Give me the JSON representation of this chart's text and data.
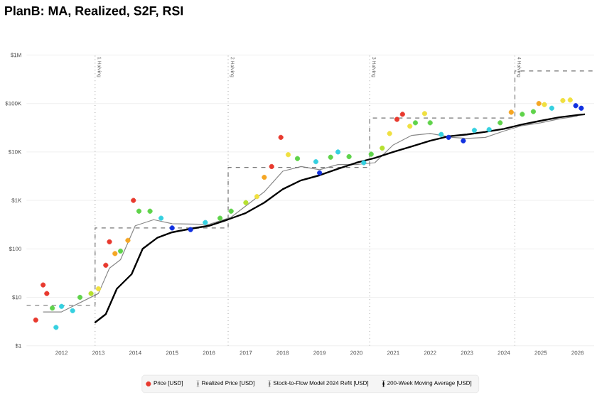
{
  "chart_data": {
    "type": "line",
    "title": "PlanB: MA, Realized, S2F, RSI",
    "log": "y",
    "grid": "y",
    "legend": "bottom",
    "xlim": [
      2011.05,
      2026.45
    ],
    "xticks": [
      2012,
      2013,
      2014,
      2015,
      2016,
      2017,
      2018,
      2019,
      2020,
      2021,
      2022,
      2023,
      2024,
      2025,
      2026
    ],
    "ylim": [
      1,
      1000000
    ],
    "yticks": [
      {
        "value": 1,
        "label": "$1"
      },
      {
        "value": 10,
        "label": "$10"
      },
      {
        "value": 100,
        "label": "$100"
      },
      {
        "value": 1000,
        "label": "$1K"
      },
      {
        "value": 10000,
        "label": "$10K"
      },
      {
        "value": 100000,
        "label": "$100K"
      },
      {
        "value": 1000000,
        "label": "$1M"
      }
    ],
    "ref_lines": [
      {
        "axis": "x",
        "value": 2012.91,
        "label": "1 Halving",
        "color": "#999999",
        "line_style": "dotted"
      },
      {
        "axis": "x",
        "value": 2016.52,
        "label": "2 Halving",
        "color": "#999999",
        "line_style": "dotted"
      },
      {
        "axis": "x",
        "value": 2020.36,
        "label": "3 Halving",
        "color": "#999999",
        "line_style": "dotted"
      },
      {
        "axis": "x",
        "value": 2024.3,
        "label": "4 Halving",
        "color": "#999999",
        "line_style": "dotted"
      }
    ],
    "series": [
      {
        "name": "Price [USD]",
        "type": "scatter",
        "x": [
          2011.3,
          2011.5,
          2011.6,
          2011.75,
          2011.85,
          2012.0,
          2012.3,
          2012.5,
          2012.8,
          2013.0,
          2013.2,
          2013.3,
          2013.45,
          2013.6,
          2013.8,
          2013.95,
          2014.1,
          2014.4,
          2014.7,
          2015.0,
          2015.5,
          2015.9,
          2016.3,
          2016.6,
          2017.0,
          2017.3,
          2017.5,
          2017.7,
          2017.95,
          2018.15,
          2018.4,
          2018.9,
          2019.0,
          2019.3,
          2019.5,
          2019.8,
          2020.2,
          2020.4,
          2020.7,
          2020.9,
          2021.1,
          2021.25,
          2021.45,
          2021.6,
          2021.85,
          2022.0,
          2022.3,
          2022.5,
          2022.9,
          2023.2,
          2023.6,
          2023.9,
          2024.2,
          2024.5,
          2024.8,
          2024.95,
          2025.1,
          2025.3,
          2025.6,
          2025.8,
          2025.95,
          2026.1
        ],
        "values": [
          3.4,
          18,
          12,
          6,
          2.4,
          6.5,
          5.3,
          10,
          12,
          15,
          46,
          140,
          80,
          90,
          150,
          1000,
          600,
          600,
          430,
          270,
          250,
          350,
          430,
          600,
          900,
          1200,
          3000,
          5000,
          20000,
          8800,
          7300,
          6300,
          3700,
          7800,
          10000,
          8000,
          6000,
          9000,
          12000,
          24000,
          47000,
          60000,
          34000,
          40000,
          62000,
          40000,
          23000,
          20000,
          17000,
          28000,
          29000,
          40000,
          66000,
          60000,
          68000,
          100000,
          95000,
          80000,
          115000,
          118000,
          90000,
          80000
        ],
        "colors": [
          "#e8392e",
          "#e8392e",
          "#e8392e",
          "#5fd34a",
          "#35d0e0",
          "#35d0e0",
          "#35d0e0",
          "#5fd34a",
          "#b5e02f",
          "#f0e040",
          "#e8392e",
          "#e8392e",
          "#f5a623",
          "#5fd34a",
          "#f5a623",
          "#e8392e",
          "#5fd34a",
          "#5fd34a",
          "#35d0e0",
          "#1030e0",
          "#1030e0",
          "#35d0e0",
          "#5fd34a",
          "#5fd34a",
          "#b5e02f",
          "#f0e040",
          "#f5a623",
          "#e8392e",
          "#e8392e",
          "#f0e040",
          "#5fd34a",
          "#35d0e0",
          "#1030e0",
          "#5fd34a",
          "#35d0e0",
          "#5fd34a",
          "#35d0e0",
          "#5fd34a",
          "#b5e02f",
          "#f0e040",
          "#e8392e",
          "#e8392e",
          "#f0e040",
          "#5fd34a",
          "#f0e040",
          "#5fd34a",
          "#35d0e0",
          "#1030e0",
          "#1030e0",
          "#35d0e0",
          "#35d0e0",
          "#5fd34a",
          "#f5a623",
          "#5fd34a",
          "#5fd34a",
          "#f5a623",
          "#f0e040",
          "#35d0e0",
          "#f0e040",
          "#f0e040",
          "#1030e0",
          "#1030e0"
        ]
      },
      {
        "name": "Realized Price [USD]",
        "color": "#888888",
        "line_style": "solid",
        "x": [
          2011.5,
          2012.0,
          2013.0,
          2013.3,
          2013.6,
          2014.0,
          2014.5,
          2015.0,
          2016.0,
          2016.6,
          2017.5,
          2018.0,
          2018.5,
          2019.0,
          2019.5,
          2020.0,
          2020.5,
          2021.0,
          2021.5,
          2022.0,
          2022.6,
          2023.0,
          2023.5,
          2024.0,
          2024.5,
          2025.0,
          2025.5,
          2026.0
        ],
        "values": [
          5,
          5,
          12,
          40,
          60,
          300,
          400,
          330,
          320,
          450,
          1500,
          4000,
          5000,
          4300,
          5500,
          5500,
          6000,
          14000,
          22000,
          24000,
          20000,
          19000,
          20000,
          27000,
          35000,
          40000,
          48000,
          55000
        ]
      },
      {
        "name": "Stock-to-Flow Model 2024 Refit [USD]",
        "type": "step",
        "color": "#777777",
        "line_style": "dashed",
        "x": [
          2011.05,
          2012.91,
          2016.52,
          2020.36,
          2024.3,
          2026.45
        ],
        "values": [
          6.8,
          270,
          4800,
          50000,
          470000,
          470000
        ]
      },
      {
        "name": "200-Week Moving Average [USD]",
        "color": "#000000",
        "line_style": "solid",
        "x": [
          2012.9,
          2013.2,
          2013.5,
          2013.9,
          2014.2,
          2014.6,
          2015.0,
          2015.5,
          2016.0,
          2016.5,
          2017.0,
          2017.5,
          2018.0,
          2018.5,
          2019.0,
          2019.5,
          2020.0,
          2020.5,
          2021.0,
          2021.5,
          2022.0,
          2022.5,
          2023.0,
          2023.5,
          2024.0,
          2024.5,
          2025.0,
          2025.5,
          2026.0,
          2026.2
        ],
        "values": [
          3,
          4.5,
          15,
          30,
          100,
          170,
          220,
          260,
          300,
          400,
          550,
          900,
          1700,
          2600,
          3300,
          4500,
          6000,
          7500,
          10000,
          13000,
          17000,
          21000,
          23000,
          26000,
          30000,
          37000,
          44000,
          52000,
          58000,
          60000
        ]
      }
    ]
  }
}
